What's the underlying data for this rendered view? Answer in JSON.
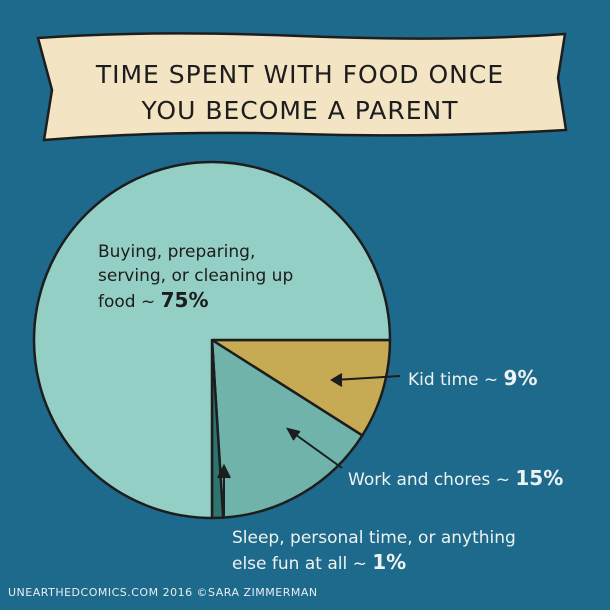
{
  "title": {
    "line1": "TIME SPENT WITH FOOD ONCE",
    "line2": "YOU BECOME A PARENT"
  },
  "chart_data": {
    "type": "pie",
    "title": "TIME SPENT WITH FOOD ONCE YOU BECOME A PARENT",
    "slices": [
      {
        "label_lines": [
          "Buying, preparing,",
          "serving, or cleaning up",
          "food ~"
        ],
        "value": 75,
        "value_text": "75%",
        "color": "#93cfc4"
      },
      {
        "label_lines": [
          "Kid time ~"
        ],
        "value": 9,
        "value_text": "9%",
        "color": "#c6ab54"
      },
      {
        "label_lines": [
          "Work and chores ~"
        ],
        "value": 15,
        "value_text": "15%",
        "color": "#6fb3ab"
      },
      {
        "label_lines": [
          "Sleep, personal time, or anything",
          "else fun at all ~"
        ],
        "value": 1,
        "value_text": "1%",
        "color": "#2e7571"
      }
    ]
  },
  "footer": "UNEARTHEDCOMICS.COM 2016 ©SARA ZIMMERMAN"
}
